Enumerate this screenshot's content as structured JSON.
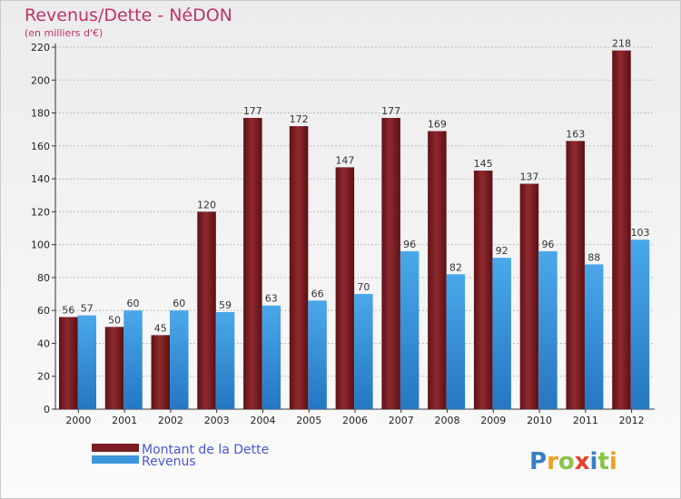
{
  "chart_data": {
    "type": "bar",
    "title": "Revenus/Dette - NéDON",
    "subtitle": "(en milliers d'€)",
    "categories": [
      "2000",
      "2001",
      "2002",
      "2003",
      "2004",
      "2005",
      "2006",
      "2007",
      "2008",
      "2009",
      "2010",
      "2011",
      "2012"
    ],
    "series": [
      {
        "name": "Montant de la Dette",
        "color": "#7a1e22",
        "values": [
          56,
          50,
          45,
          120,
          177,
          172,
          147,
          177,
          169,
          145,
          137,
          163,
          218
        ]
      },
      {
        "name": "Revenus",
        "color": "#3d97dc",
        "values": [
          57,
          60,
          60,
          59,
          63,
          66,
          70,
          96,
          82,
          92,
          96,
          88,
          103
        ]
      }
    ],
    "ylim": [
      0,
      220
    ],
    "yticks": [
      0,
      20,
      40,
      60,
      80,
      100,
      120,
      140,
      160,
      180,
      200,
      220
    ],
    "grid": true,
    "legend": "bottom-left"
  },
  "logo": {
    "letters": [
      {
        "char": "P",
        "color": "#3b7fc4"
      },
      {
        "char": "r",
        "color": "#f0a020"
      },
      {
        "char": "o",
        "color": "#8bc34a"
      },
      {
        "char": "x",
        "color": "#e8402c"
      },
      {
        "char": "i",
        "color": "#3b7fc4"
      },
      {
        "char": "t",
        "color": "#8bc34a"
      },
      {
        "char": "i",
        "color": "#f0a020"
      }
    ]
  }
}
